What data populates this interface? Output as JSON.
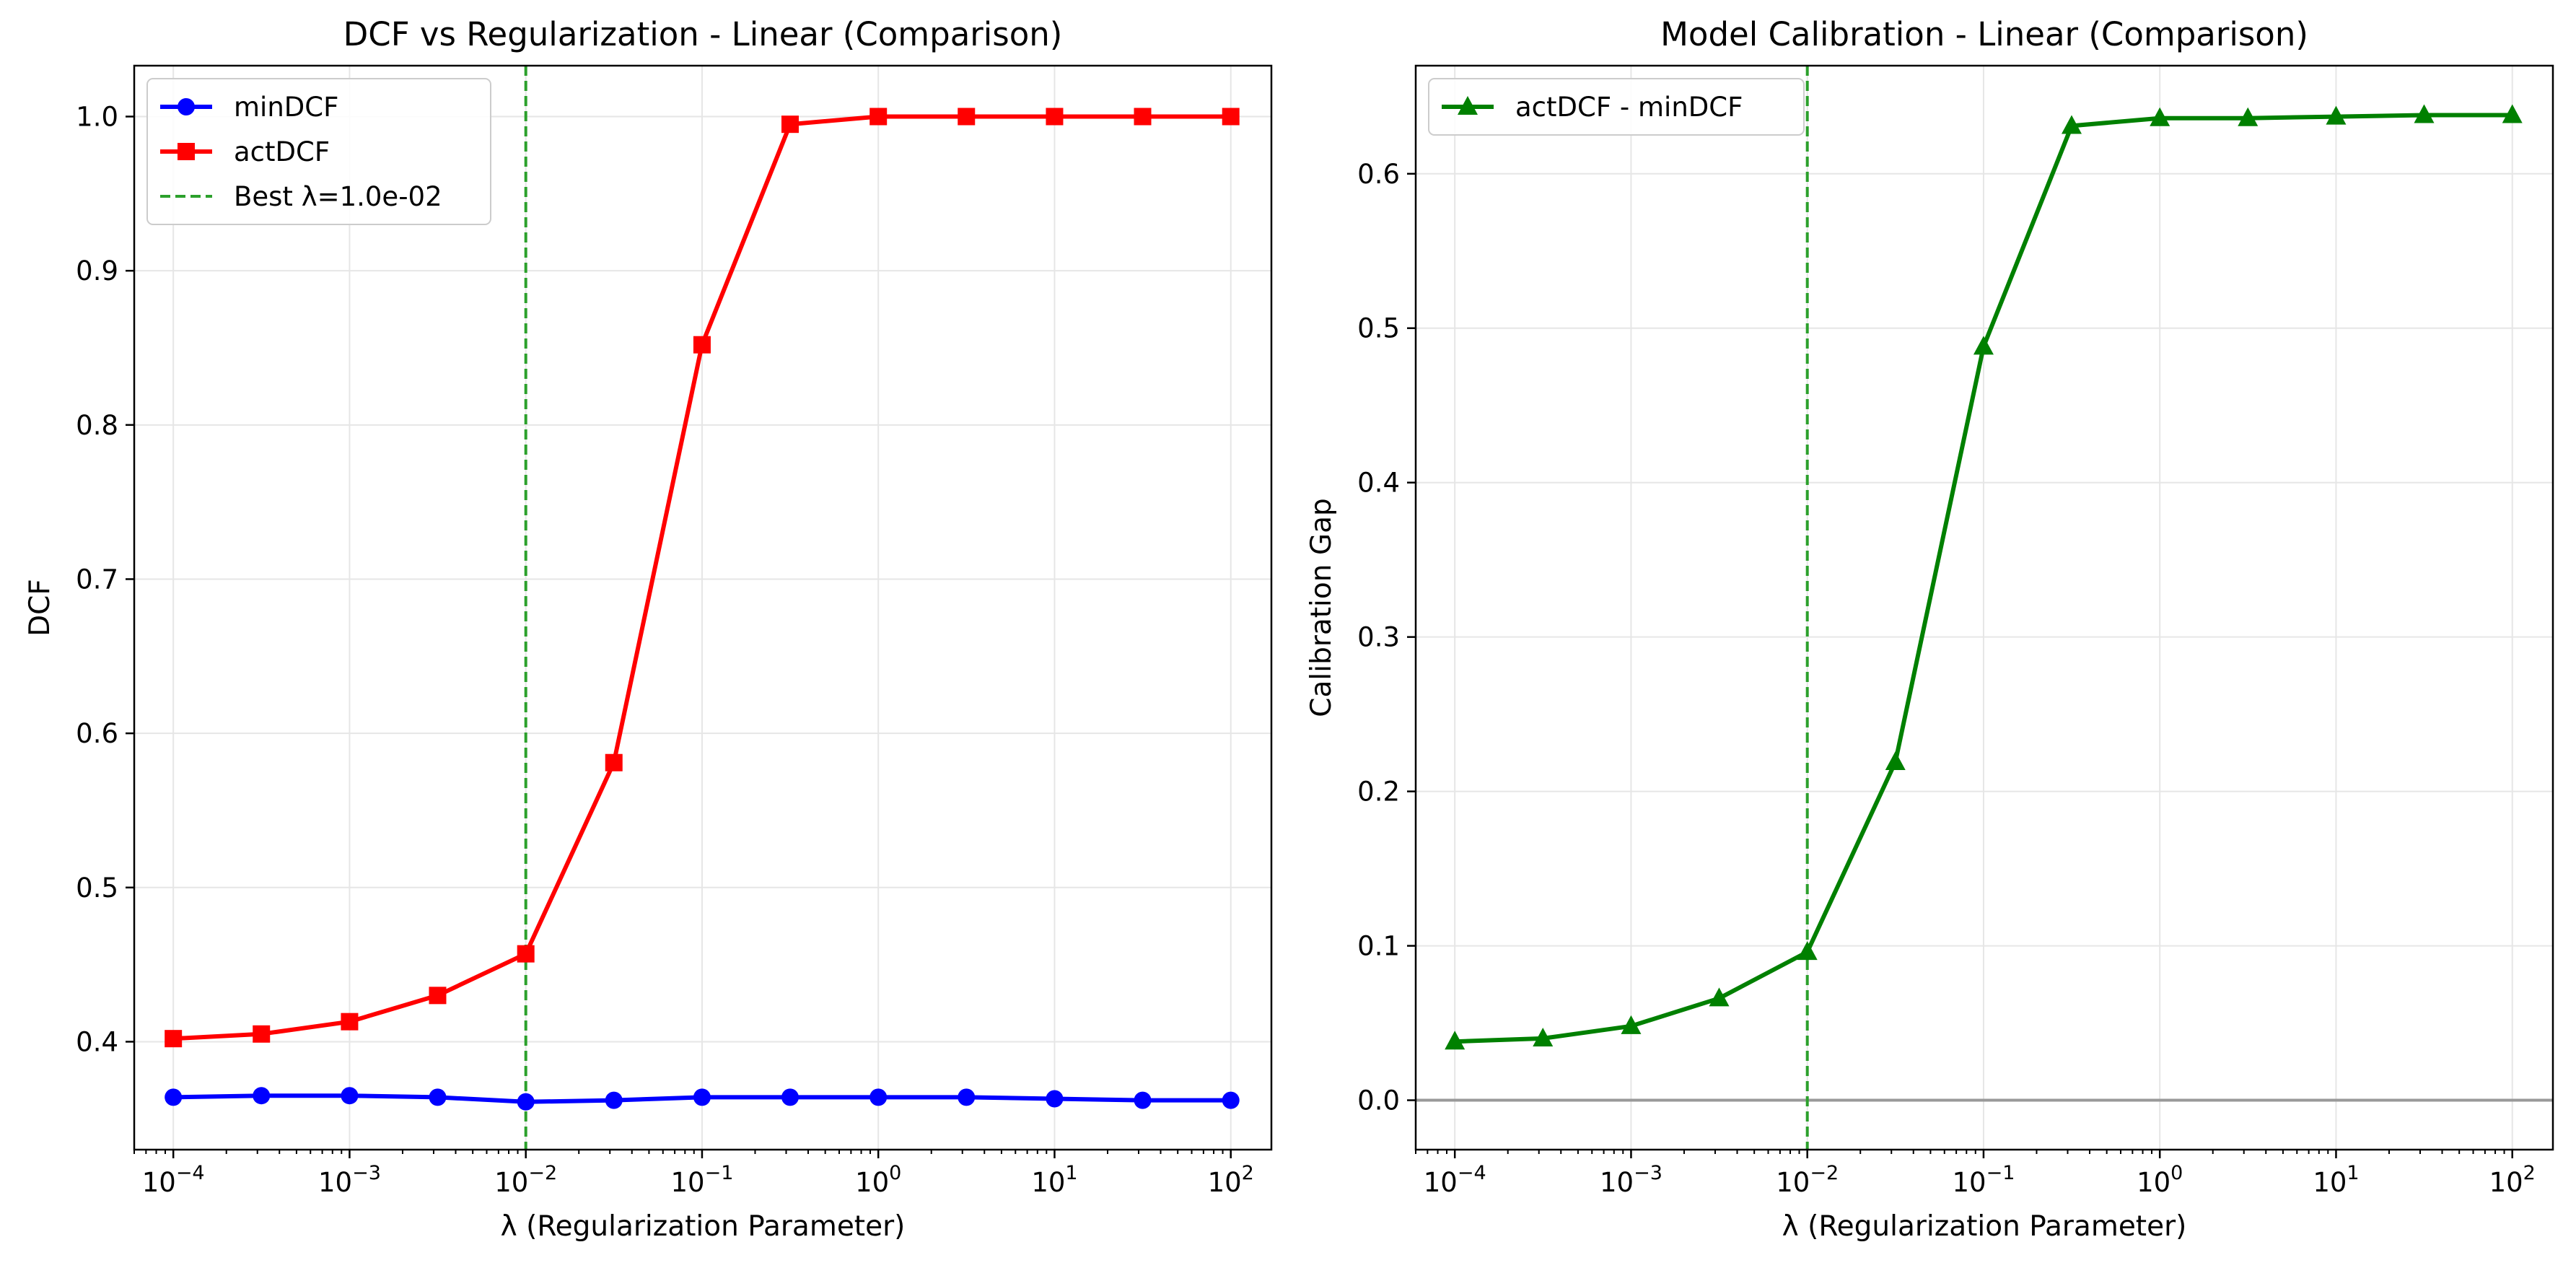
{
  "chart_data": [
    {
      "type": "line",
      "title": "DCF vs Regularization - Linear (Comparison)",
      "xlabel": "λ (Regularization Parameter)",
      "ylabel": "DCF",
      "xscale": "log",
      "xlim": [
        6e-05,
        170
      ],
      "ylim": [
        0.33,
        1.033
      ],
      "x": [
        0.0001,
        0.000316,
        0.001,
        0.00316,
        0.01,
        0.0316,
        0.1,
        0.316,
        1,
        3.16,
        10,
        31.6,
        100
      ],
      "x_ticks": [
        {
          "value": 0.0001,
          "base": "10",
          "exp": "−4"
        },
        {
          "value": 0.001,
          "base": "10",
          "exp": "−3"
        },
        {
          "value": 0.01,
          "base": "10",
          "exp": "−2"
        },
        {
          "value": 0.1,
          "base": "10",
          "exp": "−1"
        },
        {
          "value": 1,
          "base": "10",
          "exp": "0"
        },
        {
          "value": 10,
          "base": "10",
          "exp": "1"
        },
        {
          "value": 100,
          "base": "10",
          "exp": "2"
        }
      ],
      "y_ticks": [
        {
          "value": 0.4,
          "label": "0.4"
        },
        {
          "value": 0.5,
          "label": "0.5"
        },
        {
          "value": 0.6,
          "label": "0.6"
        },
        {
          "value": 0.7,
          "label": "0.7"
        },
        {
          "value": 0.8,
          "label": "0.8"
        },
        {
          "value": 0.9,
          "label": "0.9"
        },
        {
          "value": 1.0,
          "label": "1.0"
        }
      ],
      "series": [
        {
          "name": "minDCF",
          "color": "#0000ff",
          "marker": "circle",
          "values": [
            0.364,
            0.365,
            0.365,
            0.364,
            0.361,
            0.362,
            0.364,
            0.364,
            0.364,
            0.364,
            0.363,
            0.362,
            0.362
          ]
        },
        {
          "name": "actDCF",
          "color": "#ff0000",
          "marker": "square",
          "values": [
            0.402,
            0.405,
            0.413,
            0.43,
            0.457,
            0.581,
            0.852,
            0.995,
            1.0,
            1.0,
            1.0,
            1.0,
            1.0
          ]
        }
      ],
      "reference_line": {
        "x": 0.01,
        "label": "Best λ=1.0e-02",
        "color": "#2ca02c",
        "style": "dashed"
      },
      "grid": true,
      "legend": "top-left"
    },
    {
      "type": "line",
      "title": "Model Calibration - Linear (Comparison)",
      "xlabel": "λ (Regularization Parameter)",
      "ylabel": "Calibration Gap",
      "xscale": "log",
      "xlim": [
        6e-05,
        170
      ],
      "ylim": [
        -0.032,
        0.67
      ],
      "x": [
        0.0001,
        0.000316,
        0.001,
        0.00316,
        0.01,
        0.0316,
        0.1,
        0.316,
        1,
        3.16,
        10,
        31.6,
        100
      ],
      "x_ticks": [
        {
          "value": 0.0001,
          "base": "10",
          "exp": "−4"
        },
        {
          "value": 0.001,
          "base": "10",
          "exp": "−3"
        },
        {
          "value": 0.01,
          "base": "10",
          "exp": "−2"
        },
        {
          "value": 0.1,
          "base": "10",
          "exp": "−1"
        },
        {
          "value": 1,
          "base": "10",
          "exp": "0"
        },
        {
          "value": 10,
          "base": "10",
          "exp": "1"
        },
        {
          "value": 100,
          "base": "10",
          "exp": "2"
        }
      ],
      "y_ticks": [
        {
          "value": 0.0,
          "label": "0.0"
        },
        {
          "value": 0.1,
          "label": "0.1"
        },
        {
          "value": 0.2,
          "label": "0.2"
        },
        {
          "value": 0.3,
          "label": "0.3"
        },
        {
          "value": 0.4,
          "label": "0.4"
        },
        {
          "value": 0.5,
          "label": "0.5"
        },
        {
          "value": 0.6,
          "label": "0.6"
        }
      ],
      "series": [
        {
          "name": "actDCF - minDCF",
          "color": "#008000",
          "marker": "triangle",
          "values": [
            0.038,
            0.04,
            0.048,
            0.066,
            0.096,
            0.219,
            0.488,
            0.631,
            0.636,
            0.636,
            0.637,
            0.638,
            0.638
          ]
        }
      ],
      "reference_line": {
        "x": 0.01,
        "color": "#2ca02c",
        "style": "dashed"
      },
      "zero_line": {
        "y": 0,
        "color": "#999999"
      },
      "grid": true,
      "legend": "top-left"
    }
  ]
}
